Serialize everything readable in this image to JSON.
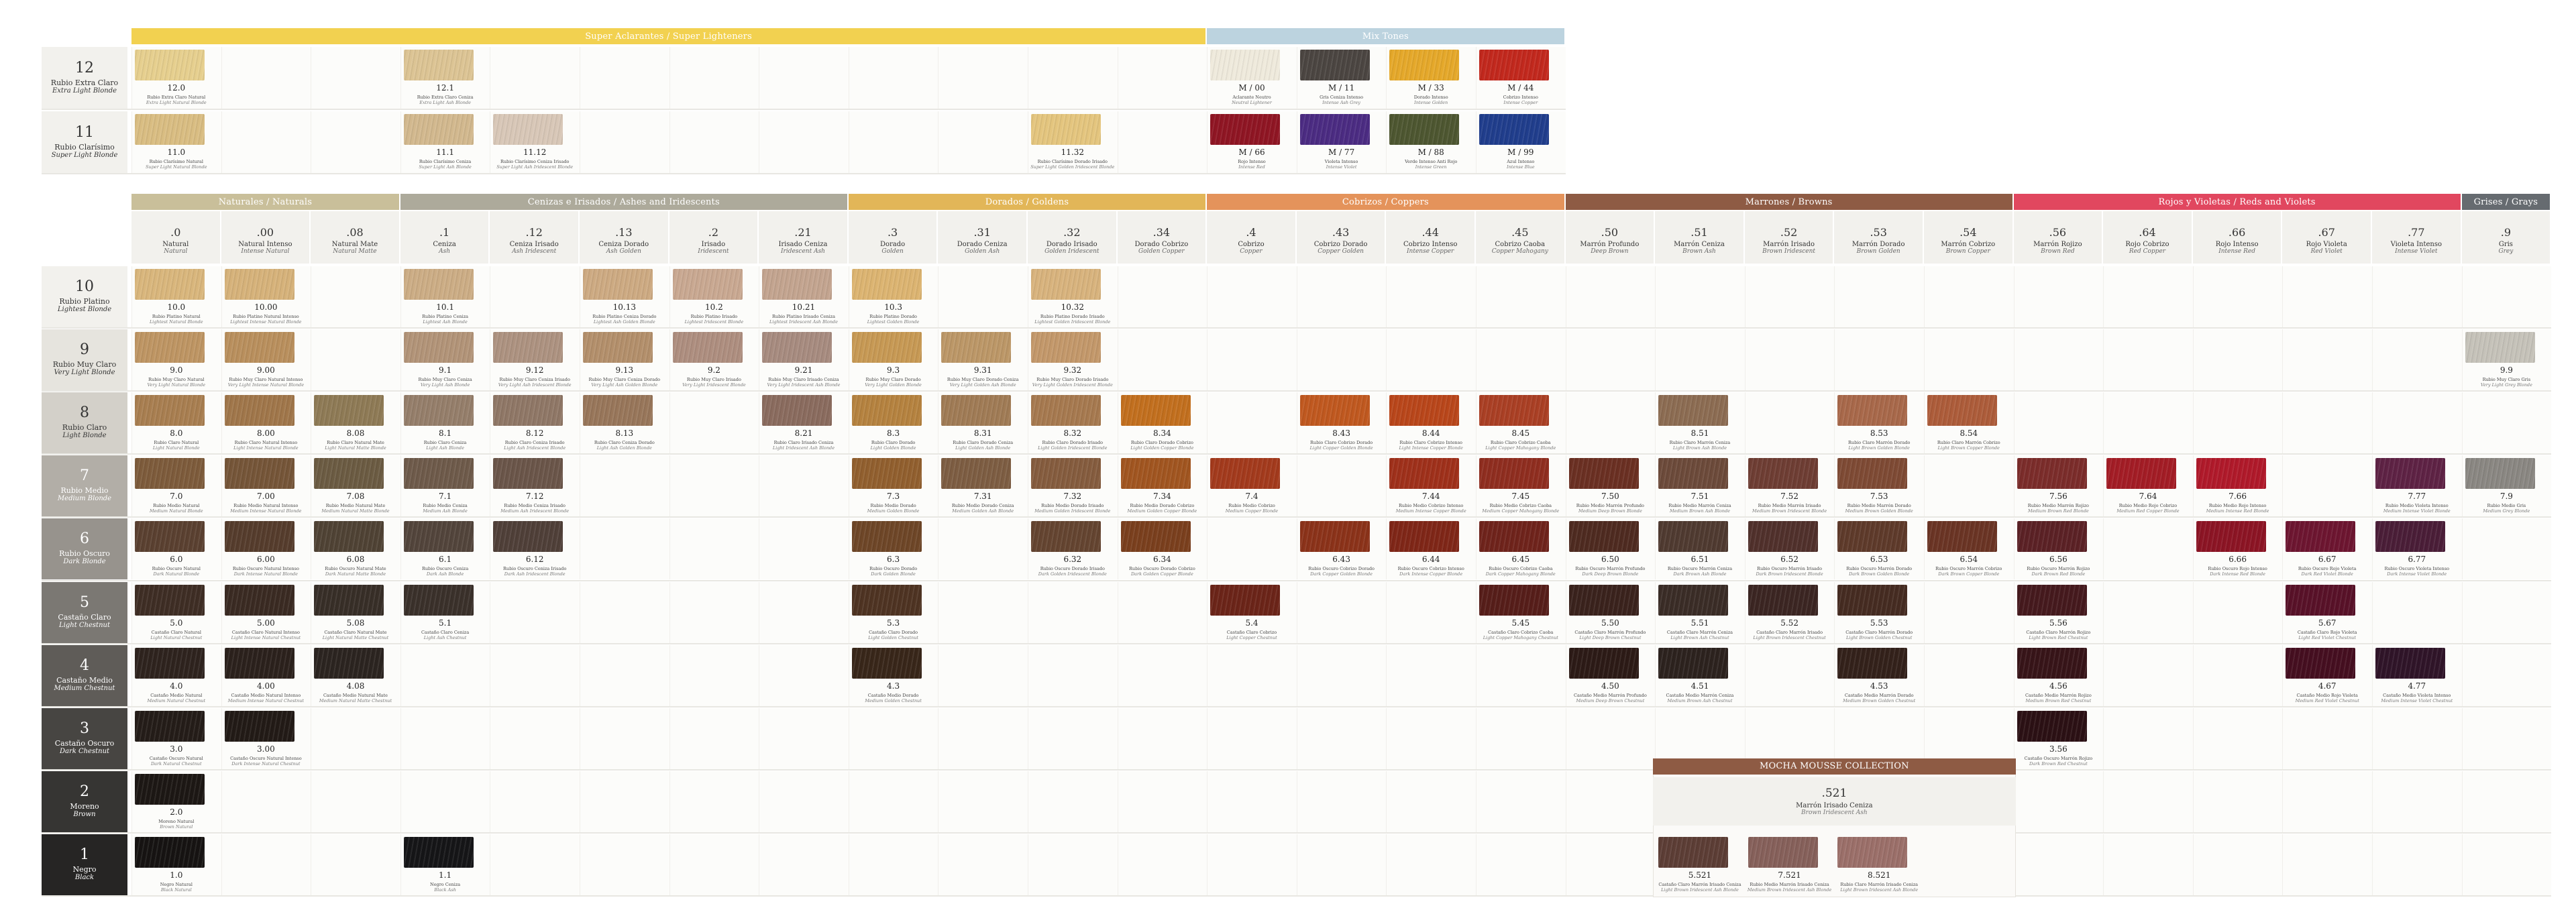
{
  "top_sections": [
    {
      "label": "Super Aclarantes / Super Lighteners",
      "color": "#f2d150"
    },
    {
      "label": "Mix Tones",
      "color": "#bcd3df"
    }
  ],
  "main_sections": [
    {
      "label": "Naturales / Naturals",
      "color": "#c9bf9a"
    },
    {
      "label": "Cenizas e Irisados / Ashes and Iridescents",
      "color": "#adaa9b"
    },
    {
      "label": "Dorados / Goldens",
      "color": "#e2b658"
    },
    {
      "label": "Cobrizos / Coppers",
      "color": "#e4935b"
    },
    {
      "label": "Marrones / Browns",
      "color": "#8e5b44"
    },
    {
      "label": "Rojos y Violetas / Reds and Violets",
      "color": "#e1475f"
    },
    {
      "label": "Grises / Grays",
      "color": "#666b70"
    }
  ],
  "columns": [
    {
      "code": ".0",
      "es": "Natural",
      "en": "Natural"
    },
    {
      "code": ".00",
      "es": "Natural Intenso",
      "en": "Intense Natural"
    },
    {
      "code": ".08",
      "es": "Natural Mate",
      "en": "Natural Matte"
    },
    {
      "code": ".1",
      "es": "Ceniza",
      "en": "Ash"
    },
    {
      "code": ".12",
      "es": "Ceniza Irisado",
      "en": "Ash Iridescent"
    },
    {
      "code": ".13",
      "es": "Ceniza Dorado",
      "en": "Ash Golden"
    },
    {
      "code": ".2",
      "es": "Irisado",
      "en": "Iridescent"
    },
    {
      "code": ".21",
      "es": "Irisado Ceniza",
      "en": "Iridescent Ash"
    },
    {
      "code": ".3",
      "es": "Dorado",
      "en": "Golden"
    },
    {
      "code": ".31",
      "es": "Dorado Ceniza",
      "en": "Golden Ash"
    },
    {
      "code": ".32",
      "es": "Dorado Irisado",
      "en": "Golden Iridescent"
    },
    {
      "code": ".34",
      "es": "Dorado Cobrizo",
      "en": "Golden Copper"
    },
    {
      "code": ".4",
      "es": "Cobrizo",
      "en": "Copper"
    },
    {
      "code": ".43",
      "es": "Cobrizo Dorado",
      "en": "Copper Golden"
    },
    {
      "code": ".44",
      "es": "Cobrizo Intenso",
      "en": "Intense Copper"
    },
    {
      "code": ".45",
      "es": "Cobrizo Caoba",
      "en": "Copper Mahogany"
    },
    {
      "code": ".50",
      "es": "Marrón Profundo",
      "en": "Deep Brown"
    },
    {
      "code": ".51",
      "es": "Marrón Ceniza",
      "en": "Brown Ash"
    },
    {
      "code": ".52",
      "es": "Marrón Irisado",
      "en": "Brown Iridescent"
    },
    {
      "code": ".53",
      "es": "Marrón Dorado",
      "en": "Brown Golden"
    },
    {
      "code": ".54",
      "es": "Marrón Cobrizo",
      "en": "Brown Copper"
    },
    {
      "code": ".56",
      "es": "Marrón Rojizo",
      "en": "Brown Red"
    },
    {
      "code": ".64",
      "es": "Rojo Cobrizo",
      "en": "Red Copper"
    },
    {
      "code": ".66",
      "es": "Rojo Intenso",
      "en": "Intense Red"
    },
    {
      "code": ".67",
      "es": "Rojo Violeta",
      "en": "Red Violet"
    },
    {
      "code": ".77",
      "es": "Violeta Intenso",
      "en": "Intense Violet"
    },
    {
      "code": ".9",
      "es": "Gris",
      "en": "Grey"
    }
  ],
  "top_levels": [
    {
      "n": "12",
      "es": "Rubio Extra Claro",
      "en": "Extra Light Blonde"
    },
    {
      "n": "11",
      "es": "Rubio Clarísimo",
      "en": "Super Light Blonde"
    }
  ],
  "levels": [
    {
      "n": "10",
      "es": "Rubio Platino",
      "en": "Lightest Blonde",
      "bg": "#f2f1ed",
      "fg": "#333"
    },
    {
      "n": "9",
      "es": "Rubio Muy Claro",
      "en": "Very Light Blonde",
      "bg": "#e6e4de",
      "fg": "#333"
    },
    {
      "n": "8",
      "es": "Rubio Claro",
      "en": "Light Blonde",
      "bg": "#d3d0c9",
      "fg": "#333"
    },
    {
      "n": "7",
      "es": "Rubio Medio",
      "en": "Medium Blonde",
      "bg": "#b2aea7",
      "fg": "#fff"
    },
    {
      "n": "6",
      "es": "Rubio Oscuro",
      "en": "Dark Blonde",
      "bg": "#97938d",
      "fg": "#fff"
    },
    {
      "n": "5",
      "es": "Castaño Claro",
      "en": "Light Chestnut",
      "bg": "#7b7873",
      "fg": "#fff"
    },
    {
      "n": "4",
      "es": "Castaño Medio",
      "en": "Medium Chestnut",
      "bg": "#5f5c58",
      "fg": "#fff"
    },
    {
      "n": "3",
      "es": "Castaño Oscuro",
      "en": "Dark Chestnut",
      "bg": "#474542",
      "fg": "#fff"
    },
    {
      "n": "2",
      "es": "Moreno",
      "en": "Brown",
      "bg": "#363533",
      "fg": "#fff"
    },
    {
      "n": "1",
      "es": "Negro",
      "en": "Black",
      "bg": "#262524",
      "fg": "#fff"
    }
  ],
  "top_swatches": [
    {
      "row": 0,
      "col": 0,
      "code": "12.0",
      "es": "Rubio Extra Claro Natural",
      "en": "Extra Light Natural Blonde",
      "color": "#e6cf8e"
    },
    {
      "row": 0,
      "col": 3,
      "code": "12.1",
      "es": "Rubio Extra Claro Ceniza",
      "en": "Extra Light Ash Blonde",
      "color": "#dcc494"
    },
    {
      "row": 1,
      "col": 0,
      "code": "11.0",
      "es": "Rubio Clarísimo Natural",
      "en": "Super Light Natural Blonde",
      "color": "#d9bd82"
    },
    {
      "row": 1,
      "col": 3,
      "code": "11.1",
      "es": "Rubio Clarísimo Ceniza",
      "en": "Super Light Ash Blonde",
      "color": "#d2b88e"
    },
    {
      "row": 1,
      "col": 4,
      "code": "11.12",
      "es": "Rubio Clarísimo Ceniza Irisado",
      "en": "Super Light Ash Iridescent Blonde",
      "color": "#d8c7b7"
    },
    {
      "row": 1,
      "col": 10,
      "code": "11.32",
      "es": "Rubio Clarísimo Dorado Irisado",
      "en": "Super Light Golden Iridescent Blonde",
      "color": "#e4c57e"
    }
  ],
  "mix_tones": [
    {
      "row": 0,
      "idx": 0,
      "code": "M / 00",
      "es": "Aclarante Neutro",
      "en": "Neutral Lightener",
      "color": "#efeadc"
    },
    {
      "row": 0,
      "idx": 1,
      "code": "M / 11",
      "es": "Gris Ceniza Intenso",
      "en": "Intense Ash Grey",
      "color": "#4b4541"
    },
    {
      "row": 0,
      "idx": 2,
      "code": "M / 33",
      "es": "Dorado Intenso",
      "en": "Intense Golden",
      "color": "#e5a82a"
    },
    {
      "row": 0,
      "idx": 3,
      "code": "M / 44",
      "es": "Cobrizo Intenso",
      "en": "Intense Copper",
      "color": "#c2281d"
    },
    {
      "row": 1,
      "idx": 0,
      "code": "M / 66",
      "es": "Rojo Intenso",
      "en": "Intense Red",
      "color": "#8f1523"
    },
    {
      "row": 1,
      "idx": 1,
      "code": "M / 77",
      "es": "Violeta Intenso",
      "en": "Intense Violet",
      "color": "#4b2b82"
    },
    {
      "row": 1,
      "idx": 2,
      "code": "M / 88",
      "es": "Verde Intenso Anti Rojo",
      "en": "Intense Green",
      "color": "#4d5630"
    },
    {
      "row": 1,
      "idx": 3,
      "code": "M / 99",
      "es": "Azul Intenso",
      "en": "Intense Blue",
      "color": "#203d8c"
    }
  ],
  "swatches": [
    {
      "row": 0,
      "col": 0,
      "code": "10.0",
      "color": "#d9b67c"
    },
    {
      "row": 0,
      "col": 1,
      "code": "10.00",
      "color": "#d6b27a"
    },
    {
      "row": 0,
      "col": 3,
      "code": "10.1",
      "color": "#ccad85"
    },
    {
      "row": 0,
      "col": 5,
      "code": "10.13",
      "color": "#cdaa82"
    },
    {
      "row": 0,
      "col": 6,
      "code": "10.2",
      "color": "#c9a891"
    },
    {
      "row": 0,
      "col": 7,
      "code": "10.21",
      "color": "#c3a48f"
    },
    {
      "row": 0,
      "col": 8,
      "code": "10.3",
      "color": "#dcb471"
    },
    {
      "row": 0,
      "col": 10,
      "code": "10.32",
      "color": "#d8b37d"
    },
    {
      "row": 1,
      "col": 0,
      "code": "9.0",
      "color": "#be9563"
    },
    {
      "row": 1,
      "col": 1,
      "code": "9.00",
      "color": "#b98f5d"
    },
    {
      "row": 1,
      "col": 3,
      "code": "9.1",
      "color": "#b29478"
    },
    {
      "row": 1,
      "col": 4,
      "code": "9.12",
      "color": "#ad9280"
    },
    {
      "row": 1,
      "col": 5,
      "code": "9.13",
      "color": "#b38f6b"
    },
    {
      "row": 1,
      "col": 6,
      "code": "9.2",
      "color": "#ae8e7f"
    },
    {
      "row": 1,
      "col": 7,
      "code": "9.21",
      "color": "#a78b7f"
    },
    {
      "row": 1,
      "col": 8,
      "code": "9.3",
      "color": "#c79954"
    },
    {
      "row": 1,
      "col": 9,
      "code": "9.31",
      "color": "#bc9767"
    },
    {
      "row": 1,
      "col": 10,
      "code": "9.32",
      "color": "#c3986a"
    },
    {
      "row": 1,
      "col": 26,
      "code": "9.9",
      "color": "#c5c2b9"
    },
    {
      "row": 2,
      "col": 0,
      "code": "8.0",
      "color": "#a87e50"
    },
    {
      "row": 2,
      "col": 1,
      "code": "8.00",
      "color": "#a0764a"
    },
    {
      "row": 2,
      "col": 2,
      "code": "8.08",
      "color": "#8e7a55"
    },
    {
      "row": 2,
      "col": 3,
      "code": "8.1",
      "color": "#957e6a"
    },
    {
      "row": 2,
      "col": 4,
      "code": "8.12",
      "color": "#8f7766"
    },
    {
      "row": 2,
      "col": 5,
      "code": "8.13",
      "color": "#98765a"
    },
    {
      "row": 2,
      "col": 7,
      "code": "8.21",
      "color": "#8a6b5e"
    },
    {
      "row": 2,
      "col": 8,
      "code": "8.3",
      "color": "#b5823f"
    },
    {
      "row": 2,
      "col": 9,
      "code": "8.31",
      "color": "#a07b55"
    },
    {
      "row": 2,
      "col": 10,
      "code": "8.32",
      "color": "#a6794f"
    },
    {
      "row": 2,
      "col": 11,
      "code": "8.34",
      "color": "#c26f1e"
    },
    {
      "row": 2,
      "col": 13,
      "code": "8.43",
      "color": "#c0581f"
    },
    {
      "row": 2,
      "col": 14,
      "code": "8.44",
      "color": "#b9461a"
    },
    {
      "row": 2,
      "col": 15,
      "code": "8.45",
      "color": "#aa3f24"
    },
    {
      "row": 2,
      "col": 17,
      "code": "8.51",
      "color": "#8c6c52"
    },
    {
      "row": 2,
      "col": 19,
      "code": "8.53",
      "color": "#a8684a"
    },
    {
      "row": 2,
      "col": 20,
      "code": "8.54",
      "color": "#ad5c3a"
    },
    {
      "row": 3,
      "col": 0,
      "code": "7.0",
      "color": "#7d5b3b"
    },
    {
      "row": 3,
      "col": 1,
      "code": "7.00",
      "color": "#755538"
    },
    {
      "row": 3,
      "col": 2,
      "code": "7.08",
      "color": "#6b5b42"
    },
    {
      "row": 3,
      "col": 3,
      "code": "7.1",
      "color": "#6e5a4a"
    },
    {
      "row": 3,
      "col": 4,
      "code": "7.12",
      "color": "#6a5549"
    },
    {
      "row": 3,
      "col": 8,
      "code": "7.3",
      "color": "#915f2e"
    },
    {
      "row": 3,
      "col": 9,
      "code": "7.31",
      "color": "#7d5d42"
    },
    {
      "row": 3,
      "col": 10,
      "code": "7.32",
      "color": "#855c3e"
    },
    {
      "row": 3,
      "col": 11,
      "code": "7.34",
      "color": "#a15520"
    },
    {
      "row": 3,
      "col": 12,
      "code": "7.4",
      "color": "#a33a1c"
    },
    {
      "row": 3,
      "col": 14,
      "code": "7.44",
      "color": "#9f301a"
    },
    {
      "row": 3,
      "col": 15,
      "code": "7.45",
      "color": "#8f2d1f"
    },
    {
      "row": 3,
      "col": 16,
      "code": "7.50",
      "color": "#6a2f22"
    },
    {
      "row": 3,
      "col": 17,
      "code": "7.51",
      "color": "#6c4a3a"
    },
    {
      "row": 3,
      "col": 18,
      "code": "7.52",
      "color": "#6e3d33"
    },
    {
      "row": 3,
      "col": 19,
      "code": "7.53",
      "color": "#7e4a34"
    },
    {
      "row": 3,
      "col": 21,
      "code": "7.56",
      "color": "#7b2c2a"
    },
    {
      "row": 3,
      "col": 22,
      "code": "7.64",
      "color": "#a31c25"
    },
    {
      "row": 3,
      "col": 23,
      "code": "7.66",
      "color": "#b0192a"
    },
    {
      "row": 3,
      "col": 25,
      "code": "7.77",
      "color": "#5e2244"
    },
    {
      "row": 3,
      "col": 26,
      "code": "7.9",
      "color": "#8a8782"
    },
    {
      "row": 4,
      "col": 0,
      "code": "6.0",
      "color": "#5a4030"
    },
    {
      "row": 4,
      "col": 1,
      "code": "6.00",
      "color": "#553c2c"
    },
    {
      "row": 4,
      "col": 2,
      "code": "6.08",
      "color": "#4f4234"
    },
    {
      "row": 4,
      "col": 3,
      "code": "6.1",
      "color": "#52443b"
    },
    {
      "row": 4,
      "col": 4,
      "code": "6.12",
      "color": "#4f3f38"
    },
    {
      "row": 4,
      "col": 8,
      "code": "6.3",
      "color": "#6e4627"
    },
    {
      "row": 4,
      "col": 10,
      "code": "6.32",
      "color": "#644430"
    },
    {
      "row": 4,
      "col": 11,
      "code": "6.34",
      "color": "#7a3f1d"
    },
    {
      "row": 4,
      "col": 13,
      "code": "6.43",
      "color": "#8b3219"
    },
    {
      "row": 4,
      "col": 14,
      "code": "6.44",
      "color": "#7f2617"
    },
    {
      "row": 4,
      "col": 15,
      "code": "6.45",
      "color": "#6f231b"
    },
    {
      "row": 4,
      "col": 16,
      "code": "6.50",
      "color": "#4e2a20"
    },
    {
      "row": 4,
      "col": 17,
      "code": "6.51",
      "color": "#4f3a30"
    },
    {
      "row": 4,
      "col": 18,
      "code": "6.52",
      "color": "#50302b"
    },
    {
      "row": 4,
      "col": 19,
      "code": "6.53",
      "color": "#5e3a2a"
    },
    {
      "row": 4,
      "col": 20,
      "code": "6.54",
      "color": "#6a3424"
    },
    {
      "row": 4,
      "col": 21,
      "code": "6.56",
      "color": "#5b2125"
    },
    {
      "row": 4,
      "col": 23,
      "code": "6.66",
      "color": "#8c1424"
    },
    {
      "row": 4,
      "col": 24,
      "code": "6.67",
      "color": "#6d1530"
    },
    {
      "row": 4,
      "col": 25,
      "code": "6.77",
      "color": "#4a1d37"
    },
    {
      "row": 5,
      "col": 0,
      "code": "5.0",
      "color": "#3e2d24"
    },
    {
      "row": 5,
      "col": 1,
      "code": "5.00",
      "color": "#3a2a22"
    },
    {
      "row": 5,
      "col": 2,
      "code": "5.08",
      "color": "#372e27"
    },
    {
      "row": 5,
      "col": 3,
      "code": "5.1",
      "color": "#3a302a"
    },
    {
      "row": 5,
      "col": 8,
      "code": "5.3",
      "color": "#4e3322"
    },
    {
      "row": 5,
      "col": 12,
      "code": "5.4",
      "color": "#6b2418"
    },
    {
      "row": 5,
      "col": 15,
      "code": "5.45",
      "color": "#561d19"
    },
    {
      "row": 5,
      "col": 16,
      "code": "5.50",
      "color": "#3a221c"
    },
    {
      "row": 5,
      "col": 17,
      "code": "5.51",
      "color": "#3a2c26"
    },
    {
      "row": 5,
      "col": 18,
      "code": "5.52",
      "color": "#3b2522"
    },
    {
      "row": 5,
      "col": 19,
      "code": "5.53",
      "color": "#452b21"
    },
    {
      "row": 5,
      "col": 21,
      "code": "5.56",
      "color": "#45191d"
    },
    {
      "row": 5,
      "col": 24,
      "code": "5.67",
      "color": "#581128"
    },
    {
      "row": 6,
      "col": 0,
      "code": "4.0",
      "color": "#2e231e"
    },
    {
      "row": 6,
      "col": 1,
      "code": "4.00",
      "color": "#2b211c"
    },
    {
      "row": 6,
      "col": 2,
      "code": "4.08",
      "color": "#2b2420"
    },
    {
      "row": 6,
      "col": 8,
      "code": "4.3",
      "color": "#382619"
    },
    {
      "row": 6,
      "col": 16,
      "code": "4.50",
      "color": "#2c1a16"
    },
    {
      "row": 6,
      "col": 17,
      "code": "4.51",
      "color": "#2c221e"
    },
    {
      "row": 6,
      "col": 19,
      "code": "4.53",
      "color": "#33211a"
    },
    {
      "row": 6,
      "col": 21,
      "code": "4.56",
      "color": "#371418"
    },
    {
      "row": 6,
      "col": 24,
      "code": "4.67",
      "color": "#450e20"
    },
    {
      "row": 6,
      "col": 25,
      "code": "4.77",
      "color": "#2f1428"
    },
    {
      "row": 7,
      "col": 0,
      "code": "3.0",
      "color": "#241c18"
    },
    {
      "row": 7,
      "col": 1,
      "code": "3.00",
      "color": "#221a16"
    },
    {
      "row": 7,
      "col": 21,
      "code": "3.56",
      "color": "#2b1014"
    },
    {
      "row": 8,
      "col": 0,
      "code": "2.0",
      "color": "#1c1714"
    },
    {
      "row": 9,
      "col": 0,
      "code": "1.0",
      "color": "#161312"
    },
    {
      "row": 9,
      "col": 3,
      "code": "1.1",
      "color": "#151517"
    }
  ],
  "mocha": {
    "title": "MOCHA MOUSSE COLLECTION",
    "code": ".521",
    "es": "Marrón Irisado Ceniza",
    "en": "Brown Iridescent Ash",
    "items": [
      {
        "code": "5.521",
        "es": "Castaño Claro Marrón Irisado Ceniza",
        "en": "Light Brown Iridescent Ash Blonde",
        "color": "#5c3d35"
      },
      {
        "code": "7.521",
        "es": "Rubio Medio Marrón Irisado Ceniza",
        "en": "Medium Brown Iridescent Ash Blonde",
        "color": "#86605a"
      },
      {
        "code": "8.521",
        "es": "Rubio Claro Marrón Irisado Ceniza",
        "en": "Light Brown Iridescent Ash Blonde",
        "color": "#9b6f69"
      }
    ]
  },
  "row_sub_es": [
    "Rubio Platino",
    "Rubio Muy Claro",
    "Rubio Claro",
    "Rubio Medio",
    "Rubio Oscuro",
    "Castaño Claro",
    "Castaño Medio",
    "Castaño Oscuro",
    "Moreno",
    "Negro"
  ],
  "row_sub_en": [
    "Lightest Blonde",
    "Very Light Blonde",
    "Light Blonde",
    "Medium Blonde",
    "Dark Blonde",
    "Light Chestnut",
    "Medium Chestnut",
    "Dark Chestnut",
    "Brown",
    "Black"
  ]
}
